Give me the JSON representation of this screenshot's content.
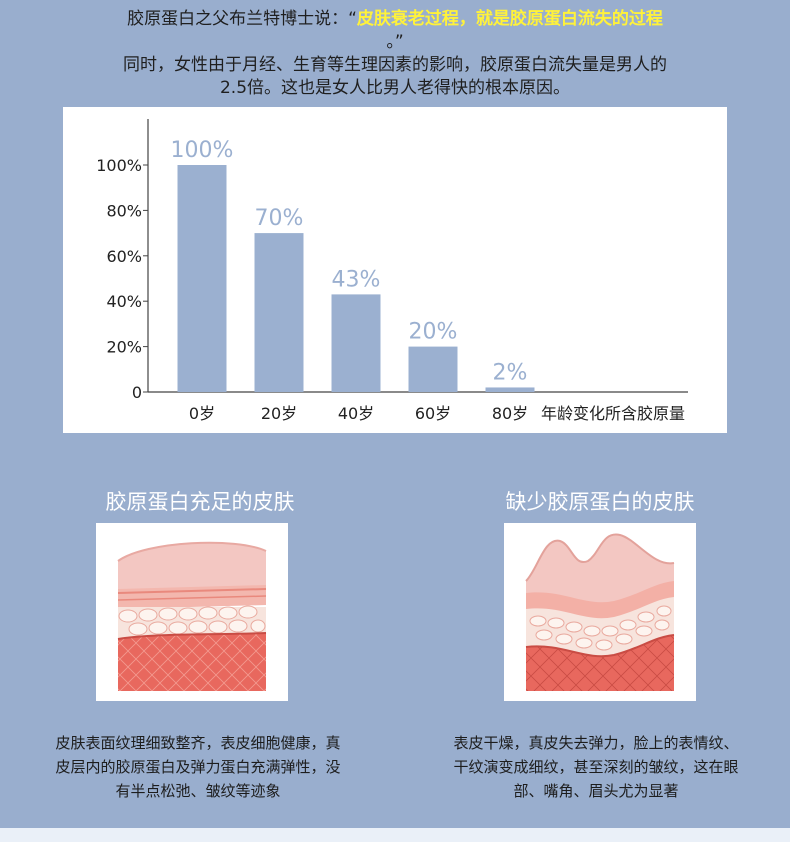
{
  "intro": {
    "line1_prefix": "胶原蛋白之父布兰特博士说：“",
    "line1_highlight": "皮肤衰老过程，就是胶原蛋白流失的过程",
    "line1_suffix": "。”",
    "line2": "同时，女性由于月经、生育等生理因素的影响，胶原蛋白流失量是男人的",
    "line3": "2.5倍。这也是女人比男人老得快的根本原因。"
  },
  "chart_data": {
    "type": "bar",
    "categories": [
      "0岁",
      "20岁",
      "40岁",
      "60岁",
      "80岁"
    ],
    "values": [
      100,
      70,
      43,
      20,
      2
    ],
    "value_labels": [
      "100%",
      "70%",
      "43%",
      "20%",
      "2%"
    ],
    "y_ticks": [
      "0",
      "20%",
      "40%",
      "60%",
      "80%",
      "100%"
    ],
    "ylim": [
      0,
      100
    ],
    "xlabel": "年龄变化所含胶原量",
    "bar_color": "#9bb0d0",
    "label_color": "#9bb0d0",
    "grid": false
  },
  "left_panel": {
    "title": "胶原蛋白充足的皮肤",
    "desc_lines": [
      "皮肤表面纹理细致整齐，表皮细胞健康，真",
      "皮层内的胶原蛋白及弹力蛋白充满弹性，没",
      "有半点松弛、皱纹等迹象"
    ]
  },
  "right_panel": {
    "title": "缺少胶原蛋白的皮肤",
    "desc_lines": [
      "表皮干燥，真皮失去弹力，脸上的表情纹、",
      "干纹演变成细纹，甚至深刻的皱纹，这在眼",
      "部、嘴角、眉头尤为显著"
    ]
  },
  "colors": {
    "background": "#99aece",
    "highlight": "#fff23a",
    "dermis": "#e8685e",
    "epidermis": "#f4c4bf"
  }
}
